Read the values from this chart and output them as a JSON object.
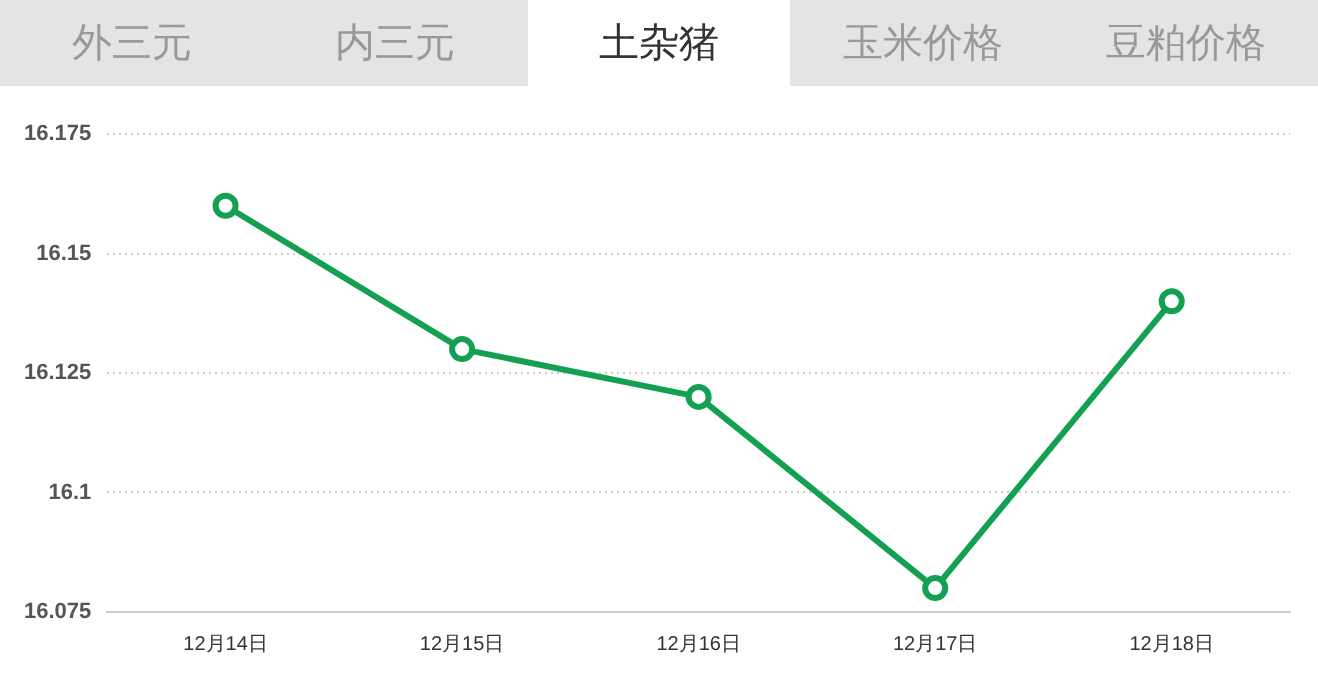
{
  "chart_data": {
    "type": "line",
    "annotations": [
      "外三元",
      "内三元",
      "土杂猪",
      "玉米价格",
      "豆粕价格"
    ],
    "categories": [
      "12月14日",
      "12月15日",
      "12月16日",
      "12月17日",
      "12月18日"
    ],
    "series": [
      {
        "color": "#13a052",
        "values": [
          16.16,
          16.13,
          16.12,
          16.08,
          16.14
        ]
      }
    ],
    "ylim": [
      16.075,
      16.175
    ],
    "yticks": [
      16.075,
      16.1,
      16.125,
      16.15,
      16.175
    ],
    "grid": "y",
    "legend": false,
    "marker": "circle",
    "line_style": "solid"
  }
}
